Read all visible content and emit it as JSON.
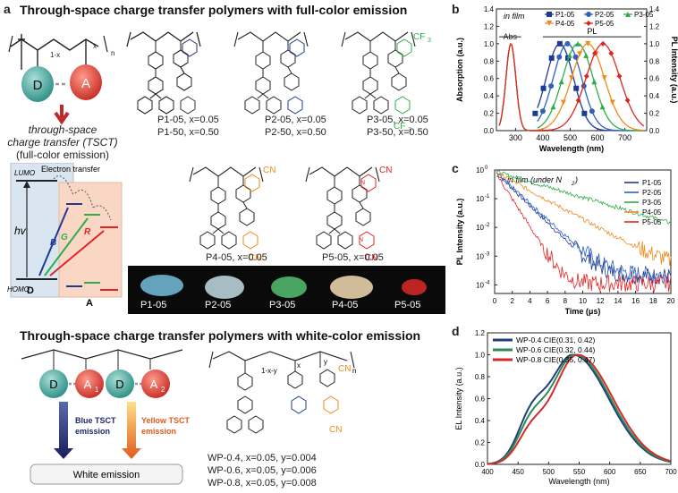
{
  "panel_a": {
    "label": "a",
    "title_full": "Through-space charge transfer polymers with full-color emission",
    "title_white": "Through-space charge transfer polymers with white-color emission",
    "donor": "D",
    "acceptor": "A",
    "tsct_line1": "through-space",
    "tsct_line2": "charge transfer (TSCT)",
    "tsct_line3": "(full-color emission)",
    "polymers": [
      {
        "l1": "P1-05, x=0.05",
        "l2": "P1-50, x=0.50"
      },
      {
        "l1": "P2-05, x=0.05",
        "l2": "P2-50, x=0.50"
      },
      {
        "l1": "P3-05, x=0.05",
        "l2": "P3-50, x=0.50"
      },
      {
        "l1": "P4-05, x=0.05"
      },
      {
        "l1": "P5-05, x=0.05"
      }
    ],
    "energy": {
      "lumo": "LUMO",
      "homo": "HOMO",
      "hv": "hv",
      "transfer": "Electron transfer",
      "B": "B",
      "G": "G",
      "R": "R",
      "D": "D",
      "A": "A"
    },
    "photos": [
      "P1-05",
      "P2-05",
      "P3-05",
      "P4-05",
      "P5-05"
    ],
    "white": {
      "D": "D",
      "A1": "A",
      "A1sub": "1",
      "A2": "A",
      "A2sub": "2",
      "blue_l1": "Blue  TSCT",
      "blue_l2": "emission",
      "yellow_l1": "Yellow TSCT",
      "yellow_l2": "emission",
      "white_box": "White emission",
      "wp": [
        "WP-0.4, x=0.05, y=0.004",
        "WP-0.6, x=0.05, y=0.006",
        "WP-0.8, x=0.05, y=0.008"
      ],
      "sub_x": "x",
      "sub_y": "y",
      "sub_1xy": "1-x-y",
      "sub_n": "n"
    },
    "groups": {
      "cf3": "CF",
      "cf3_sub": "3",
      "cn": "CN",
      "n": "N",
      "sub_x": "x",
      "sub_1x": "1-x",
      "sub_n": "n"
    }
  },
  "colors": {
    "P1": "#1f3a93",
    "P2": "#3060c0",
    "P3": "#2eae4a",
    "P4": "#f08a1c",
    "P5": "#e02424",
    "WP04": "#1f3f7a",
    "WP06": "#2e8b57",
    "WP08": "#d42a2a"
  },
  "chart_data": [
    {
      "id": "b",
      "panel": "b",
      "type": "line",
      "annotation": "in film",
      "abs_label": "Abs",
      "pl_label": "PL",
      "xlabel": "Wavelength (nm)",
      "ylabel_left": "Absorption (a.u.)",
      "ylabel_right": "PL Intensity (a.u.)",
      "xlim": [
        230,
        780
      ],
      "ylim": [
        0,
        1.4
      ],
      "xticks": [
        300,
        400,
        500,
        600,
        700
      ],
      "yticks": [
        0.0,
        0.2,
        0.4,
        0.6,
        0.8,
        1.0,
        1.2,
        1.4
      ],
      "ytick_labels": [
        "0.0",
        "0.2",
        "0.4",
        "0.6",
        "0.8",
        "1.0",
        "1.2",
        "1.4"
      ],
      "series": [
        {
          "name": "P1-05",
          "color": "#1f3a93",
          "marker": "square",
          "abs_peak": 283,
          "pl_peak": 462,
          "pl_width": 50
        },
        {
          "name": "P2-05",
          "color": "#3060c0",
          "marker": "circle",
          "abs_peak": 283,
          "pl_peak": 490,
          "pl_width": 52
        },
        {
          "name": "P3-05",
          "color": "#2eae4a",
          "marker": "triangle",
          "abs_peak": 283,
          "pl_peak": 528,
          "pl_width": 56
        },
        {
          "name": "P4-05",
          "color": "#f08a1c",
          "marker": "triangle-down",
          "abs_peak": 283,
          "pl_peak": 565,
          "pl_width": 60
        },
        {
          "name": "P5-05",
          "color": "#e02424",
          "marker": "diamond",
          "abs_peak": 283,
          "pl_peak": 620,
          "pl_width": 62
        }
      ]
    },
    {
      "id": "c",
      "panel": "c",
      "type": "line",
      "annotation": "in film (under N",
      "annotation_sub": "2",
      "annotation_end": ")",
      "xlabel": "Time (μs)",
      "ylabel": "PL Intensity (a.u.)",
      "xlim": [
        0,
        20
      ],
      "yscale": "log",
      "ylim_exp": [
        -4.3,
        0
      ],
      "xticks": [
        0,
        2,
        4,
        6,
        8,
        10,
        12,
        14,
        16,
        18,
        20
      ],
      "yticks_exp": [
        0,
        -1,
        -2,
        -3,
        -4
      ],
      "ytick_base": "10",
      "ytick_exps": [
        "0",
        "-1",
        "-2",
        "-3",
        "-4"
      ],
      "series": [
        {
          "name": "P1-05",
          "color": "#1f3a93",
          "decay": 1.45,
          "floor": 0.0002
        },
        {
          "name": "P2-05",
          "color": "#3060c0",
          "decay": 1.55,
          "floor": 0.00022
        },
        {
          "name": "P3-05",
          "color": "#2eae4a",
          "decay": 4.8,
          "floor": 0.0004
        },
        {
          "name": "P4-05",
          "color": "#f08a1c",
          "decay": 2.6,
          "floor": 0.00028
        },
        {
          "name": "P5-05",
          "color": "#e02424",
          "decay": 0.9,
          "floor": 0.00011
        }
      ]
    },
    {
      "id": "d",
      "panel": "d",
      "type": "line",
      "xlabel": "Wavelength (nm)",
      "ylabel": "EL Intensity (a.u.)",
      "xlim": [
        400,
        700
      ],
      "ylim": [
        0,
        1.2
      ],
      "xticks": [
        400,
        450,
        500,
        550,
        600,
        650,
        700
      ],
      "yticks": [
        0.0,
        0.2,
        0.4,
        0.6,
        0.8,
        1.0,
        1.2
      ],
      "ytick_labels": [
        "0.0",
        "0.2",
        "0.4",
        "0.6",
        "0.8",
        "1.0",
        "1.2"
      ],
      "series": [
        {
          "name": "WP-0.4 CIE(0.31, 0.42)",
          "color": "#1f3f7a",
          "peak": 540,
          "shoulder": 0.72
        },
        {
          "name": "WP-0.6 CIE(0.32, 0.44)",
          "color": "#2e8b57",
          "peak": 543,
          "shoulder": 0.62
        },
        {
          "name": "WP-0.8 CIE(0.35, 0.47)",
          "color": "#d42a2a",
          "peak": 547,
          "shoulder": 0.5
        }
      ]
    }
  ]
}
